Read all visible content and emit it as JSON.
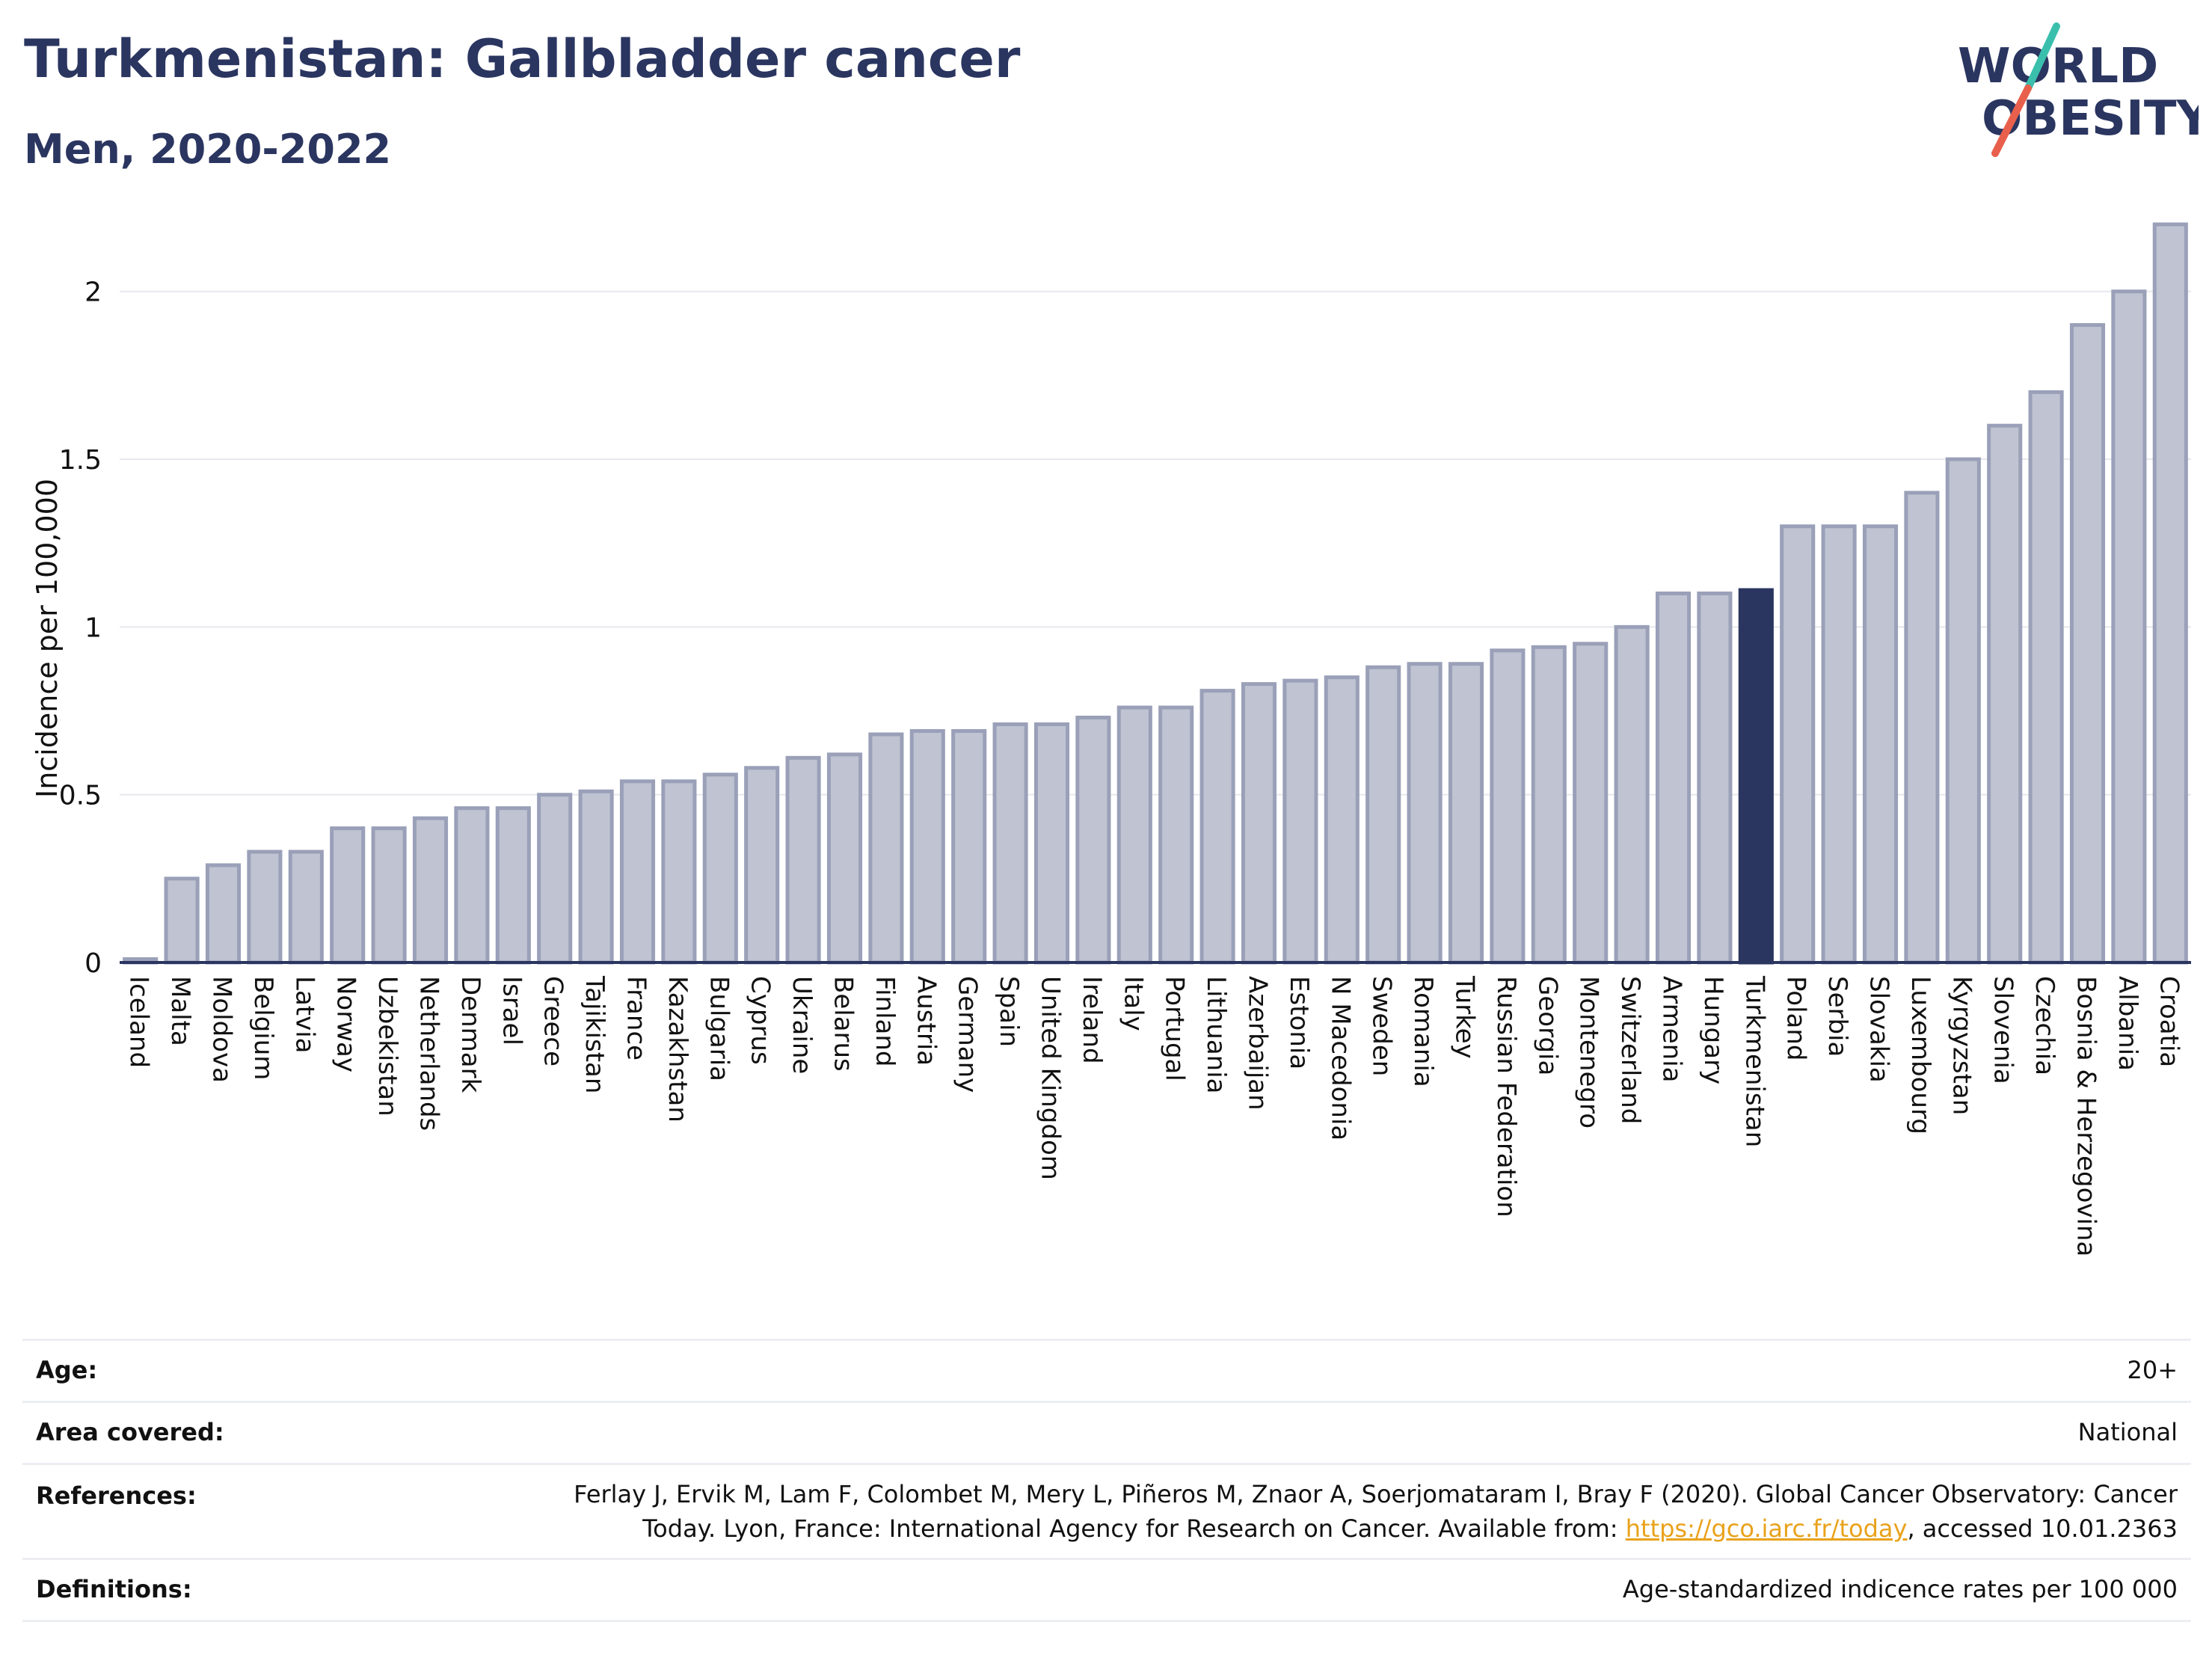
{
  "header": {
    "title": "Turkmenistan: Gallbladder cancer",
    "subtitle": "Men, 2020-2022"
  },
  "logo": {
    "line1": "WORLD",
    "line2": "OBESITY",
    "accent_colors": [
      "#3bbfad",
      "#e8604c"
    ]
  },
  "colors": {
    "bar": "#bfc3d2",
    "bar_stroke": "#9aa0b8",
    "highlight": "#2a3560",
    "grid": "#e6e8ee",
    "axis": "#2a3560"
  },
  "chart_data": {
    "type": "bar",
    "ylabel": "Incidence per 100,000",
    "ylim": [
      0,
      2.2
    ],
    "yticks": [
      0,
      0.5,
      1,
      1.5,
      2
    ],
    "ytick_labels": [
      "0",
      "0.5",
      "1",
      "1.5",
      "2"
    ],
    "highlight": "Turkmenistan",
    "categories": [
      "Iceland",
      "Malta",
      "Moldova",
      "Belgium",
      "Latvia",
      "Norway",
      "Uzbekistan",
      "Netherlands",
      "Denmark",
      "Israel",
      "Greece",
      "Tajikistan",
      "France",
      "Kazakhstan",
      "Bulgaria",
      "Cyprus",
      "Ukraine",
      "Belarus",
      "Finland",
      "Austria",
      "Germany",
      "Spain",
      "United Kingdom",
      "Ireland",
      "Italy",
      "Portugal",
      "Lithuania",
      "Azerbaijan",
      "Estonia",
      "N Macedonia",
      "Sweden",
      "Romania",
      "Turkey",
      "Russian Federation",
      "Georgia",
      "Montenegro",
      "Switzerland",
      "Armenia",
      "Hungary",
      "Turkmenistan",
      "Poland",
      "Serbia",
      "Slovakia",
      "Luxembourg",
      "Kyrgyzstan",
      "Slovenia",
      "Czechia",
      "Bosnia & Herzegovina",
      "Albania",
      "Croatia"
    ],
    "values": [
      0.01,
      0.25,
      0.29,
      0.33,
      0.33,
      0.4,
      0.4,
      0.43,
      0.46,
      0.46,
      0.5,
      0.51,
      0.54,
      0.54,
      0.56,
      0.58,
      0.61,
      0.62,
      0.68,
      0.69,
      0.69,
      0.71,
      0.71,
      0.73,
      0.76,
      0.76,
      0.81,
      0.83,
      0.84,
      0.85,
      0.88,
      0.89,
      0.89,
      0.93,
      0.94,
      0.95,
      1.0,
      1.1,
      1.1,
      1.11,
      1.3,
      1.3,
      1.3,
      1.4,
      1.5,
      1.6,
      1.7,
      1.9,
      2.0,
      2.2
    ]
  },
  "info": {
    "age_label": "Age:",
    "age_value": "20+",
    "area_label": "Area covered:",
    "area_value": "National",
    "references_label": "References:",
    "references_line1": "Ferlay J, Ervik M, Lam F, Colombet M, Mery L, Piñeros M, Znaor A, Soerjomataram I, Bray F (2020). Global Cancer Observatory: Cancer",
    "references_line2_pre": "Today. Lyon, France: International Agency for Research on Cancer. Available from: ",
    "references_link": "https://gco.iarc.fr/today",
    "references_line2_post": ", accessed 10.01.2363",
    "definitions_label": "Definitions:",
    "definitions_value": "Age-standardized indicence rates per 100 000"
  }
}
